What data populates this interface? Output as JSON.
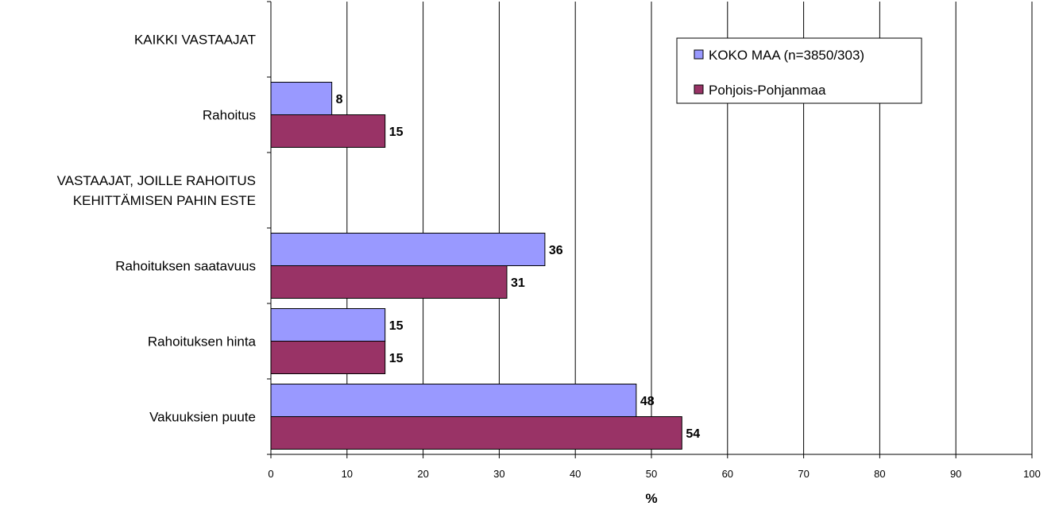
{
  "chart_data": {
    "type": "bar",
    "orientation": "horizontal",
    "categories": [
      [
        "KAIKKI VASTAAJAT"
      ],
      [
        "Rahoitus"
      ],
      [
        "VASTAAJAT, JOILLE RAHOITUS",
        "KEHITTÄMISEN PAHIN ESTE"
      ],
      [
        "Rahoituksen saatavuus"
      ],
      [
        "Rahoituksen hinta"
      ],
      [
        "Vakuuksien puute"
      ]
    ],
    "series": [
      {
        "name": "KOKO MAA (n=3850/303)",
        "color": "#9999ff",
        "values": [
          null,
          8,
          null,
          36,
          15,
          48
        ]
      },
      {
        "name": "Pohjois-Pohjanmaa",
        "color": "#993366",
        "values": [
          null,
          15,
          null,
          31,
          15,
          54
        ]
      }
    ],
    "xlabel": "%",
    "xlim": [
      0,
      100
    ],
    "xticks": [
      0,
      10,
      20,
      30,
      40,
      50,
      60,
      70,
      80,
      90,
      100
    ],
    "grid": true,
    "legend_position": "top-right"
  }
}
